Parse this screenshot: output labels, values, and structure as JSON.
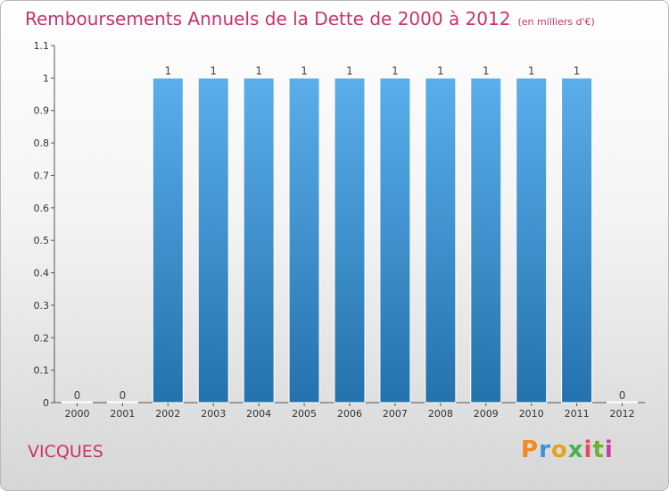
{
  "header": {
    "title": "Remboursements Annuels de la Dette de 2000 à 2012",
    "unit": "(en milliers d'€)"
  },
  "commune": "VICQUES",
  "brand": {
    "text": "Proxiti",
    "colors": [
      "#f08a1c",
      "#3a93d6",
      "#e6a21b",
      "#4caf50",
      "#e64a5b",
      "#6cb32f",
      "#c93fa0"
    ]
  },
  "colors": {
    "bar_top": "#5aaeea",
    "bar_bottom": "#2472ad",
    "title": "#c8336a"
  },
  "chart_data": {
    "type": "bar",
    "title": "Remboursements Annuels de la Dette de 2000 à 2012",
    "xlabel": "",
    "ylabel": "",
    "categories": [
      "2000",
      "2001",
      "2002",
      "2003",
      "2004",
      "2005",
      "2006",
      "2007",
      "2008",
      "2009",
      "2010",
      "2011",
      "2012"
    ],
    "values": [
      0,
      0,
      1,
      1,
      1,
      1,
      1,
      1,
      1,
      1,
      1,
      1,
      0
    ],
    "value_labels": [
      "0",
      "0",
      "1",
      "1",
      "1",
      "1",
      "1",
      "1",
      "1",
      "1",
      "1",
      "1",
      "0"
    ],
    "ylim": [
      0,
      1.1
    ],
    "yticks": [
      {
        "value": 0,
        "label": "0"
      },
      {
        "value": 0.1,
        "label": "0.1"
      },
      {
        "value": 0.2,
        "label": "0.2"
      },
      {
        "value": 0.3,
        "label": "0.3"
      },
      {
        "value": 0.4,
        "label": "0.4"
      },
      {
        "value": 0.5,
        "label": "0.5"
      },
      {
        "value": 0.6,
        "label": "0.6"
      },
      {
        "value": 0.7,
        "label": "0.7"
      },
      {
        "value": 0.8,
        "label": "0.8"
      },
      {
        "value": 0.9,
        "label": "0.9"
      },
      {
        "value": 1,
        "label": "1"
      },
      {
        "value": 1.1,
        "label": "1.1"
      }
    ],
    "grid": false,
    "legend": "none"
  }
}
